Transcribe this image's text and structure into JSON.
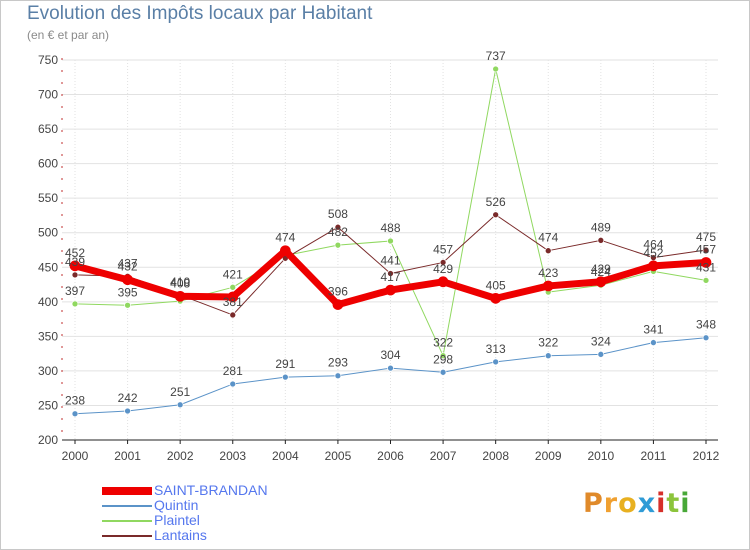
{
  "title": "Evolution des Impôts locaux par Habitant",
  "subtitle": "(en € et par an)",
  "logo": {
    "text": "Proxiti",
    "letters": [
      {
        "ch": "P",
        "color": "#e08a2a"
      },
      {
        "ch": "r",
        "color": "#f0a030"
      },
      {
        "ch": "o",
        "color": "#e8b020"
      },
      {
        "ch": "x",
        "color": "#2f9bd6"
      },
      {
        "ch": "i",
        "color": "#d6302a"
      },
      {
        "ch": "t",
        "color": "#8cc43c"
      },
      {
        "ch": "i",
        "color": "#48a838"
      }
    ]
  },
  "chart_data": {
    "type": "line",
    "title": "Evolution des Impôts locaux par Habitant",
    "ylabel": "(en € et par an)",
    "xlabel": "",
    "x": [
      "2000",
      "2001",
      "2002",
      "2003",
      "2004",
      "2005",
      "2006",
      "2007",
      "2008",
      "2009",
      "2010",
      "2011",
      "2012"
    ],
    "ylim": [
      200,
      750
    ],
    "yticks": [
      200,
      250,
      300,
      350,
      400,
      450,
      500,
      550,
      600,
      650,
      700,
      750
    ],
    "grid": true,
    "series": [
      {
        "name": "SAINT-BRANDAN",
        "color": "#ee0000",
        "stroke_width": 7,
        "values": [
          452,
          432,
          408,
          407,
          474,
          396,
          417,
          429,
          405,
          423,
          429,
          452,
          457
        ],
        "labels": [
          "452",
          "432",
          "408",
          "",
          "474",
          "396",
          "417",
          "429",
          "405",
          "423",
          "429",
          "452",
          "457"
        ]
      },
      {
        "name": "Quintin",
        "color": "#5b93c8",
        "stroke_width": 1,
        "values": [
          238,
          242,
          251,
          281,
          291,
          293,
          304,
          298,
          313,
          322,
          324,
          341,
          348
        ],
        "labels": [
          "238",
          "242",
          "251",
          "281",
          "291",
          "293",
          "304",
          "298",
          "313",
          "322",
          "324",
          "341",
          "348"
        ]
      },
      {
        "name": "Plaintel",
        "color": "#90d860",
        "stroke_width": 1,
        "values": [
          397,
          395,
          401,
          421,
          467,
          482,
          488,
          322,
          737,
          414,
          424,
          444,
          431
        ],
        "labels": [
          "397",
          "395",
          "",
          "421",
          "",
          "482",
          "488",
          "322",
          "737",
          "",
          "424",
          "",
          "431"
        ]
      },
      {
        "name": "Lantains",
        "color": "#7a2a2a",
        "stroke_width": 1,
        "values": [
          439,
          437,
          410,
          381,
          463,
          508,
          441,
          457,
          526,
          474,
          489,
          464,
          475
        ],
        "labels": [
          "439",
          "437",
          "410",
          "381",
          "",
          "508",
          "441",
          "457",
          "526",
          "474",
          "489",
          "464",
          "475"
        ]
      }
    ]
  }
}
